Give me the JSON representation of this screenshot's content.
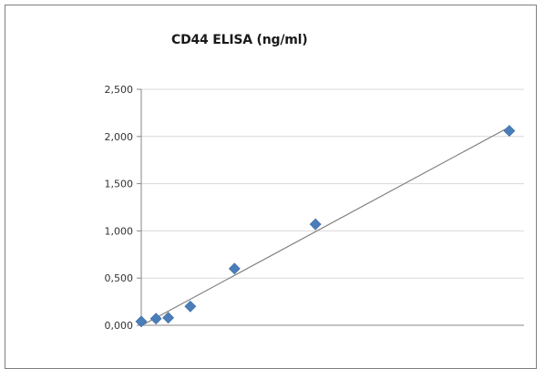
{
  "chart_data": {
    "type": "scatter",
    "title": "CD44 ELISA (ng/ml)",
    "xlabel": "",
    "ylabel": "",
    "y_ticks": [
      "0,000",
      "0,500",
      "1,000",
      "1,500",
      "2,000",
      "2,500"
    ],
    "ylim": [
      0,
      2.5
    ],
    "grid": true,
    "legend": "none",
    "marker_color": "#4a7ebb",
    "trendline": {
      "type": "linear",
      "color": "#808080"
    },
    "series": [
      {
        "x": [
          0.0,
          0.06,
          0.11,
          0.2,
          0.38,
          0.71,
          1.5
        ],
        "y": [
          0.04,
          0.07,
          0.08,
          0.2,
          0.6,
          1.07,
          2.06
        ]
      }
    ]
  }
}
